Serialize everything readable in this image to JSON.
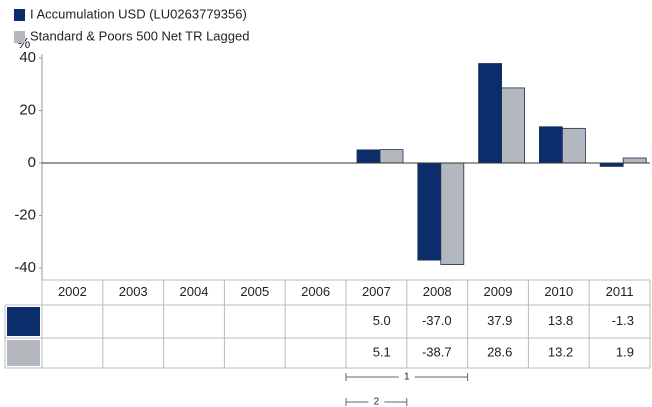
{
  "chart_data": {
    "type": "bar",
    "y_label": "%",
    "categories": [
      "2002",
      "2003",
      "2004",
      "2005",
      "2006",
      "2007",
      "2008",
      "2009",
      "2010",
      "2011"
    ],
    "series": [
      {
        "name": "I Accumulation USD (LU0263779356)",
        "color": "#0b2d6b",
        "values": [
          null,
          null,
          null,
          null,
          null,
          5.0,
          -37.0,
          37.9,
          13.8,
          -1.3
        ],
        "value_labels": [
          null,
          null,
          null,
          null,
          null,
          "5.0",
          "-37.0",
          "37.9",
          "13.8",
          "-1.3"
        ]
      },
      {
        "name": "Standard & Poors 500 Net TR Lagged",
        "color": "#b3b8bf",
        "values": [
          null,
          null,
          null,
          null,
          null,
          5.1,
          -38.7,
          28.6,
          13.2,
          1.9
        ],
        "value_labels": [
          null,
          null,
          null,
          null,
          null,
          "5.1",
          "-38.7",
          "28.6",
          "13.2",
          "1.9"
        ]
      }
    ],
    "ylim": [
      -40,
      40
    ],
    "yticks": [
      -40,
      -20,
      0,
      20,
      40
    ],
    "grid": false,
    "annotations": [
      "1",
      "2"
    ]
  }
}
